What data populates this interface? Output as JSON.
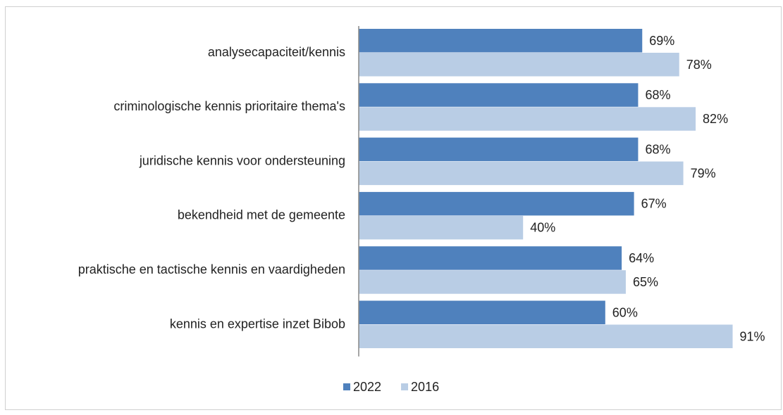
{
  "chart_data": {
    "type": "bar",
    "orientation": "horizontal",
    "categories": [
      "analysecapaciteit/kennis",
      "criminologische kennis prioritaire thema's",
      "juridische kennis voor ondersteuning",
      "bekendheid met de gemeente",
      "praktische en tactische kennis en vaardigheden",
      "kennis en expertise inzet Bibob"
    ],
    "series": [
      {
        "name": "2022",
        "color": "#4f81bd",
        "values": [
          69,
          68,
          68,
          67,
          64,
          60
        ],
        "value_labels": [
          "69%",
          "68%",
          "68%",
          "67%",
          "64%",
          "60%"
        ]
      },
      {
        "name": "2016",
        "color": "#b9cde5",
        "values": [
          78,
          82,
          79,
          40,
          65,
          91
        ],
        "value_labels": [
          "78%",
          "82%",
          "79%",
          "40%",
          "65%",
          "91%"
        ]
      }
    ],
    "xlim": [
      0,
      100
    ],
    "legend": "bottom"
  }
}
